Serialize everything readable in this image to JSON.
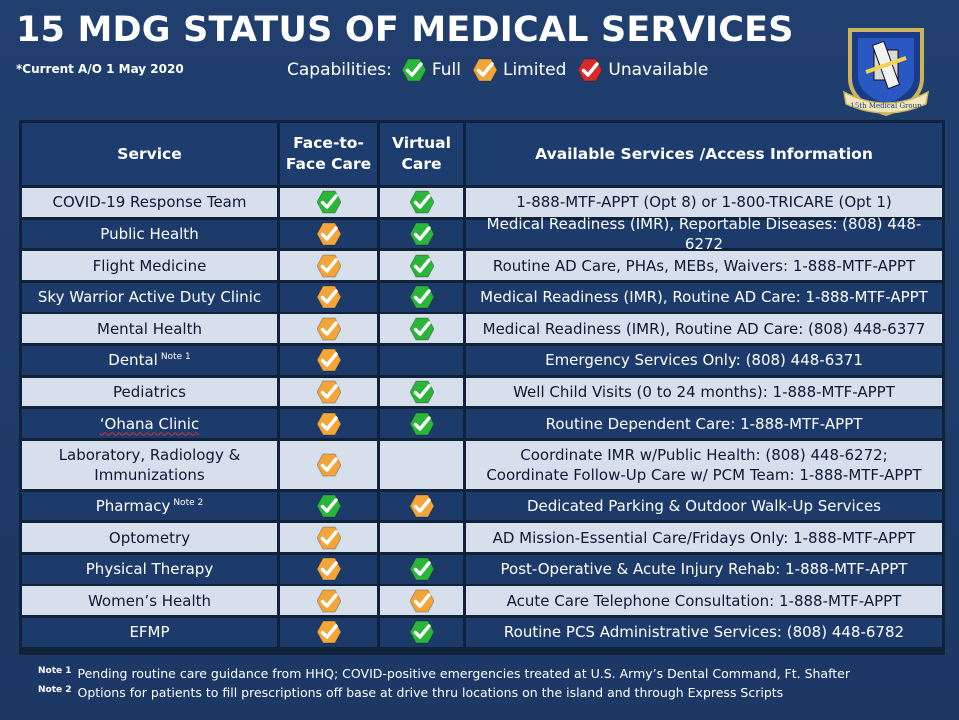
{
  "header": {
    "title": "15 MDG STATUS OF MEDICAL SERVICES",
    "current_as_of": "*Current A/O 1 May 2020",
    "legend_label": "Capabilities:",
    "legend": [
      {
        "status": "full",
        "label": "Full"
      },
      {
        "status": "limited",
        "label": "Limited"
      },
      {
        "status": "unavailable",
        "label": "Unavailable"
      }
    ],
    "emblem_text": "15th Medical Group"
  },
  "colors": {
    "full": "#2bb53a",
    "limited": "#f2a53a",
    "unavailable": "#d72a2a",
    "background": "#1e3b69"
  },
  "table": {
    "columns": [
      "Service",
      "Face-to-Face Care",
      "Virtual Care",
      "Available Services /Access Information"
    ],
    "col_lines": [
      [
        "Service"
      ],
      [
        "Face-to-",
        "Face Care"
      ],
      [
        "Virtual",
        "Care"
      ],
      [
        "Available Services /Access Information"
      ]
    ],
    "rows": [
      {
        "service": "COVID-19 Response Team",
        "note": "",
        "f2f": "full",
        "virtual": "full",
        "info": [
          "1-888-MTF-APPT (Opt 8) or 1-800-TRICARE (Opt 1)"
        ]
      },
      {
        "service": "Public Health",
        "note": "",
        "f2f": "limited",
        "virtual": "full",
        "info": [
          "Medical Readiness (IMR), Reportable Diseases:  (808) 448-6272"
        ]
      },
      {
        "service": "Flight Medicine",
        "note": "",
        "f2f": "limited",
        "virtual": "full",
        "info": [
          "Routine AD Care, PHAs, MEBs, Waivers: 1-888-MTF-APPT"
        ]
      },
      {
        "service": "Sky Warrior Active Duty Clinic",
        "note": "",
        "f2f": "limited",
        "virtual": "full",
        "info": [
          "Medical Readiness (IMR), Routine AD Care: 1-888-MTF-APPT"
        ]
      },
      {
        "service": "Mental Health",
        "note": "",
        "f2f": "limited",
        "virtual": "full",
        "info": [
          "Medical Readiness (IMR), Routine AD Care: (808) 448-6377"
        ]
      },
      {
        "service": "Dental",
        "note": "Note 1",
        "f2f": "limited",
        "virtual": "",
        "info": [
          "Emergency Services Only: (808) 448-6371"
        ]
      },
      {
        "service": "Pediatrics",
        "note": "",
        "f2f": "limited",
        "virtual": "full",
        "info": [
          "Well Child Visits (0 to 24 months): 1-888-MTF-APPT"
        ]
      },
      {
        "service": "‘Ohana Clinic",
        "note": "",
        "f2f": "limited",
        "virtual": "full",
        "info": [
          "Routine Dependent Care: 1-888-MTF-APPT"
        ]
      },
      {
        "service": "Laboratory, Radiology & Immunizations",
        "service_lines": [
          "Laboratory, Radiology &",
          "Immunizations"
        ],
        "note": "",
        "f2f": "limited",
        "virtual": "",
        "info": [
          "Coordinate IMR w/Public Health: (808) 448-6272;",
          "Coordinate Follow-Up Care  w/ PCM Team: 1-888-MTF-APPT"
        ]
      },
      {
        "service": "Pharmacy",
        "note": "Note 2",
        "f2f": "full",
        "virtual": "limited",
        "info": [
          "Dedicated Parking & Outdoor Walk-Up Services"
        ]
      },
      {
        "service": "Optometry",
        "note": "",
        "f2f": "limited",
        "virtual": "",
        "info": [
          "AD Mission-Essential Care/Fridays Only: 1-888-MTF-APPT"
        ]
      },
      {
        "service": "Physical Therapy",
        "note": "",
        "f2f": "limited",
        "virtual": "full",
        "info": [
          "Post-Operative &  Acute Injury Rehab: 1-888-MTF-APPT"
        ]
      },
      {
        "service": "Women’s Health",
        "note": "",
        "f2f": "limited",
        "virtual": "limited",
        "info": [
          "Acute Care Telephone Consultation: 1-888-MTF-APPT"
        ]
      },
      {
        "service": "EFMP",
        "note": "",
        "f2f": "limited",
        "virtual": "full",
        "info": [
          "Routine PCS Administrative Services: (808) 448-6782"
        ]
      }
    ]
  },
  "notes": [
    {
      "label": "Note 1",
      "text": "Pending routine care guidance from HHQ; COVID-positive emergencies treated at U.S. Army’s Dental Command, Ft. Shafter"
    },
    {
      "label": "Note 2",
      "text": "Options for patients to fill prescriptions off base at drive thru locations on the island and through Express Scripts"
    }
  ]
}
